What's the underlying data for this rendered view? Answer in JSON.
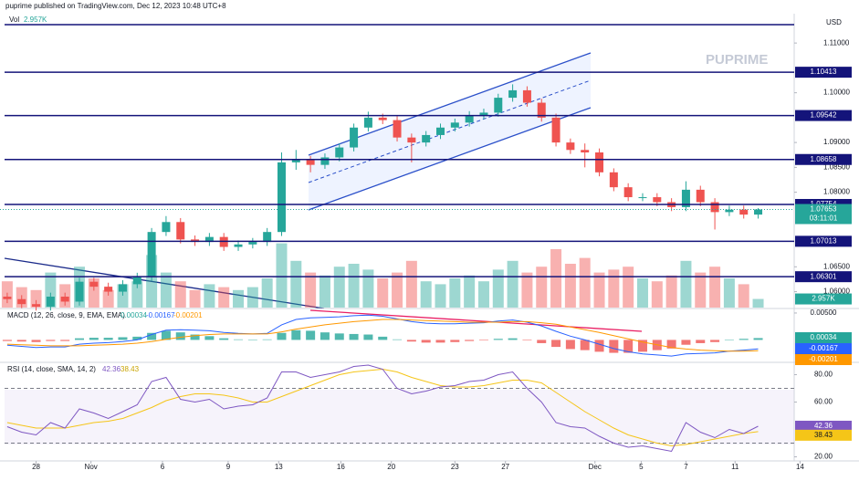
{
  "chart_data": {
    "type": "candlestick",
    "title": "puprime published on TradingView.com, Dec 12, 2023 10:48 UTC+8",
    "currency": "USD",
    "watermark": "PUPRIME",
    "up_color": "#26a69a",
    "down_color": "#ef5350",
    "level_color": "#14147a",
    "xlim": [
      -0.5,
      55
    ],
    "xticks": [
      {
        "value": 2.0,
        "label": "28"
      },
      {
        "value": 5.8,
        "label": "Nov"
      },
      {
        "value": 10.75,
        "label": "6"
      },
      {
        "value": 15.3,
        "label": "9"
      },
      {
        "value": 18.8,
        "label": "13"
      },
      {
        "value": 23.1,
        "label": "16"
      },
      {
        "value": 26.6,
        "label": "20"
      },
      {
        "value": 31.0,
        "label": "23"
      },
      {
        "value": 34.5,
        "label": "27"
      },
      {
        "value": 40.7,
        "label": "Dec"
      },
      {
        "value": 43.9,
        "label": "5"
      },
      {
        "value": 47.0,
        "label": "7"
      },
      {
        "value": 50.4,
        "label": "11"
      },
      {
        "value": 54.9,
        "label": "14"
      }
    ],
    "ylim": [
      1.0568,
      1.1159
    ],
    "yticks": [
      {
        "value": 1.11,
        "label": "1.11000"
      },
      {
        "value": 1.1,
        "label": "1.10000"
      },
      {
        "value": 1.09,
        "label": "1.09000"
      },
      {
        "value": 1.085,
        "label": "1.08500"
      },
      {
        "value": 1.08,
        "label": "1.08000"
      },
      {
        "value": 1.065,
        "label": "1.06500"
      },
      {
        "value": 1.06,
        "label": "1.06000"
      }
    ],
    "top_line": 1.1137,
    "levels": [
      1.10413,
      1.09542,
      1.08658,
      1.07754,
      1.07013,
      1.06301
    ],
    "open": [
      1.059,
      1.0585,
      1.0575,
      1.057,
      1.059,
      1.058,
      1.062,
      1.061,
      1.06,
      1.0615,
      1.063,
      1.072,
      1.074,
      1.0705,
      1.07,
      1.071,
      1.069,
      1.0695,
      1.07,
      1.072,
      1.086,
      1.0865,
      1.0855,
      1.087,
      1.089,
      1.093,
      1.095,
      1.0945,
      1.091,
      1.09,
      1.0915,
      1.093,
      1.094,
      1.0955,
      1.096,
      1.099,
      1.1005,
      1.098,
      1.095,
      1.09,
      1.0885,
      1.088,
      1.084,
      1.081,
      1.079,
      1.079,
      1.078,
      1.077,
      1.0805,
      1.078,
      1.076,
      1.0765,
      1.0755
    ],
    "high": [
      1.0598,
      1.0593,
      1.0583,
      1.0598,
      1.0598,
      1.0628,
      1.0628,
      1.0618,
      1.0623,
      1.0638,
      1.0728,
      1.0752,
      1.0748,
      1.0713,
      1.0718,
      1.0718,
      1.0703,
      1.0708,
      1.0728,
      1.088,
      1.0885,
      1.0873,
      1.0878,
      1.0898,
      1.0938,
      1.0962,
      1.0958,
      1.0953,
      1.0918,
      1.0923,
      1.0938,
      1.0948,
      1.0963,
      1.0968,
      1.0998,
      1.1017,
      1.1013,
      1.0988,
      1.0958,
      1.0908,
      1.0898,
      1.0888,
      1.0848,
      1.0818,
      1.0798,
      1.0798,
      1.0788,
      1.0822,
      1.0813,
      1.0788,
      1.0773,
      1.0773,
      1.0768
    ],
    "low": [
      1.0577,
      1.0567,
      1.0562,
      1.0562,
      1.0572,
      1.0572,
      1.0602,
      1.0592,
      1.0592,
      1.0607,
      1.0622,
      1.0712,
      1.0697,
      1.0692,
      1.0692,
      1.0682,
      1.0682,
      1.0687,
      1.0692,
      1.0712,
      1.0845,
      1.084,
      1.0847,
      1.0862,
      1.0882,
      1.0922,
      1.0937,
      1.0902,
      1.086,
      1.0892,
      1.0907,
      1.0922,
      1.0932,
      1.0947,
      1.0952,
      1.0982,
      1.0972,
      1.0942,
      1.0892,
      1.0877,
      1.085,
      1.0832,
      1.0802,
      1.0782,
      1.0782,
      1.0772,
      1.0762,
      1.0762,
      1.0772,
      1.0725,
      1.0752,
      1.0747,
      1.0747
    ],
    "close": [
      1.0585,
      1.0575,
      1.057,
      1.059,
      1.058,
      1.062,
      1.061,
      1.06,
      1.0615,
      1.063,
      1.072,
      1.074,
      1.0705,
      1.07,
      1.071,
      1.069,
      1.0695,
      1.07,
      1.072,
      1.086,
      1.0865,
      1.0855,
      1.087,
      1.089,
      1.093,
      1.095,
      1.0945,
      1.091,
      1.09,
      1.0915,
      1.093,
      1.094,
      1.0955,
      1.096,
      1.099,
      1.1005,
      1.098,
      1.095,
      1.09,
      1.0885,
      1.088,
      1.084,
      1.081,
      1.079,
      1.079,
      1.078,
      1.077,
      1.0805,
      1.078,
      1.076,
      1.0765,
      1.0755,
      1.07653
    ],
    "countdown": "03:11:01",
    "volume": {
      "title": "Vol",
      "last_label": "2.957K",
      "lim": [
        0,
        25
      ],
      "values": [
        9,
        7,
        6,
        12,
        8,
        14,
        10,
        6,
        8,
        9,
        18,
        12,
        9,
        6,
        8,
        7,
        6,
        7,
        10,
        22,
        16,
        12,
        11,
        14,
        15,
        13,
        10,
        12,
        16,
        9,
        8,
        10,
        11,
        9,
        13,
        16,
        12,
        14,
        20,
        15,
        17,
        12,
        13,
        14,
        10,
        9,
        11,
        16,
        12,
        14,
        10,
        8,
        2.957
      ]
    },
    "macd": {
      "title": "MACD (12, 26, close, 9, EMA, EMA)",
      "lim": [
        -0.004,
        0.0055
      ],
      "ticks": [
        {
          "value": 0.005,
          "label": "0.00500"
        }
      ],
      "line_color": "#2962ff",
      "signal_color": "#ff9800",
      "macd": [
        -0.001,
        -0.0012,
        -0.0014,
        -0.0013,
        -0.0013,
        -0.0008,
        -0.0006,
        -0.0005,
        -0.0003,
        0.0,
        0.001,
        0.0018,
        0.0019,
        0.0018,
        0.0017,
        0.0014,
        0.0012,
        0.0011,
        0.0012,
        0.0028,
        0.0038,
        0.0041,
        0.0042,
        0.0043,
        0.0045,
        0.0046,
        0.0044,
        0.0039,
        0.0034,
        0.0031,
        0.003,
        0.003,
        0.0031,
        0.0032,
        0.0035,
        0.0037,
        0.0033,
        0.0026,
        0.0016,
        0.0007,
        0.0,
        -0.0008,
        -0.0016,
        -0.0022,
        -0.0026,
        -0.0028,
        -0.003,
        -0.0026,
        -0.0025,
        -0.0024,
        -0.0021,
        -0.0019,
        -0.00167
      ],
      "signal": [
        -0.0008,
        -0.0009,
        -0.001,
        -0.0011,
        -0.0011,
        -0.0011,
        -0.001,
        -0.0009,
        -0.0008,
        -0.0006,
        -0.0003,
        0.0001,
        0.0005,
        0.0008,
        0.001,
        0.0011,
        0.0011,
        0.0011,
        0.0011,
        0.0015,
        0.002,
        0.0024,
        0.0028,
        0.0031,
        0.0034,
        0.0036,
        0.0038,
        0.0038,
        0.0037,
        0.0036,
        0.0035,
        0.0034,
        0.0033,
        0.0033,
        0.0033,
        0.0034,
        0.0034,
        0.0032,
        0.0029,
        0.0024,
        0.0019,
        0.0014,
        0.0008,
        0.0002,
        -0.0004,
        -0.0009,
        -0.0014,
        -0.0017,
        -0.0019,
        -0.002,
        -0.0021,
        -0.0021,
        -0.00201
      ],
      "hist": [
        -0.0002,
        -0.0003,
        -0.0004,
        -0.0002,
        -0.0002,
        0.0003,
        0.0004,
        0.0004,
        0.0005,
        0.0006,
        0.0013,
        0.0017,
        0.0014,
        0.001,
        0.0007,
        0.0003,
        0.0001,
        0.0,
        0.0001,
        0.0013,
        0.0018,
        0.0017,
        0.0014,
        0.0012,
        0.0011,
        0.001,
        0.0006,
        0.0001,
        -0.0003,
        -0.0005,
        -0.0005,
        -0.0004,
        -0.0002,
        -0.0001,
        0.0002,
        0.0003,
        -0.0001,
        -0.0006,
        -0.0013,
        -0.0017,
        -0.0019,
        -0.0022,
        -0.0024,
        -0.0024,
        -0.0022,
        -0.0019,
        -0.0016,
        -0.0009,
        -0.0006,
        -0.0004,
        0.0,
        0.0002,
        0.00034
      ]
    },
    "rsi": {
      "title": "RSI (14, close, SMA, 14, 2)",
      "lim": [
        17,
        87
      ],
      "ticks": [
        {
          "value": 80,
          "label": "80.00"
        },
        {
          "value": 60,
          "label": "60.00"
        },
        {
          "value": 20,
          "label": "20.00"
        }
      ],
      "bands": [
        70,
        30
      ],
      "line_color": "#7e57c2",
      "ma_color": "#f5c518",
      "values": [
        42,
        38,
        36,
        45,
        41,
        55,
        52,
        48,
        53,
        58,
        75,
        78,
        62,
        60,
        62,
        55,
        57,
        58,
        63,
        82,
        82,
        78,
        80,
        82,
        86,
        87,
        84,
        70,
        66,
        68,
        71,
        72,
        75,
        76,
        80,
        82,
        70,
        60,
        45,
        42,
        41,
        35,
        30,
        27,
        28,
        26,
        24,
        45,
        38,
        34,
        40,
        37,
        42.36
      ],
      "ma": [
        45,
        43,
        41,
        41,
        41,
        43,
        45,
        46,
        48,
        52,
        56,
        61,
        64,
        66,
        66,
        65,
        63,
        60,
        60,
        64,
        68,
        72,
        76,
        80,
        82,
        83,
        84,
        82,
        78,
        75,
        72,
        71,
        71,
        72,
        74,
        76,
        76,
        74,
        67,
        60,
        53,
        47,
        41,
        36,
        33,
        30,
        28,
        29,
        31,
        33,
        35,
        37,
        38.43
      ]
    }
  }
}
